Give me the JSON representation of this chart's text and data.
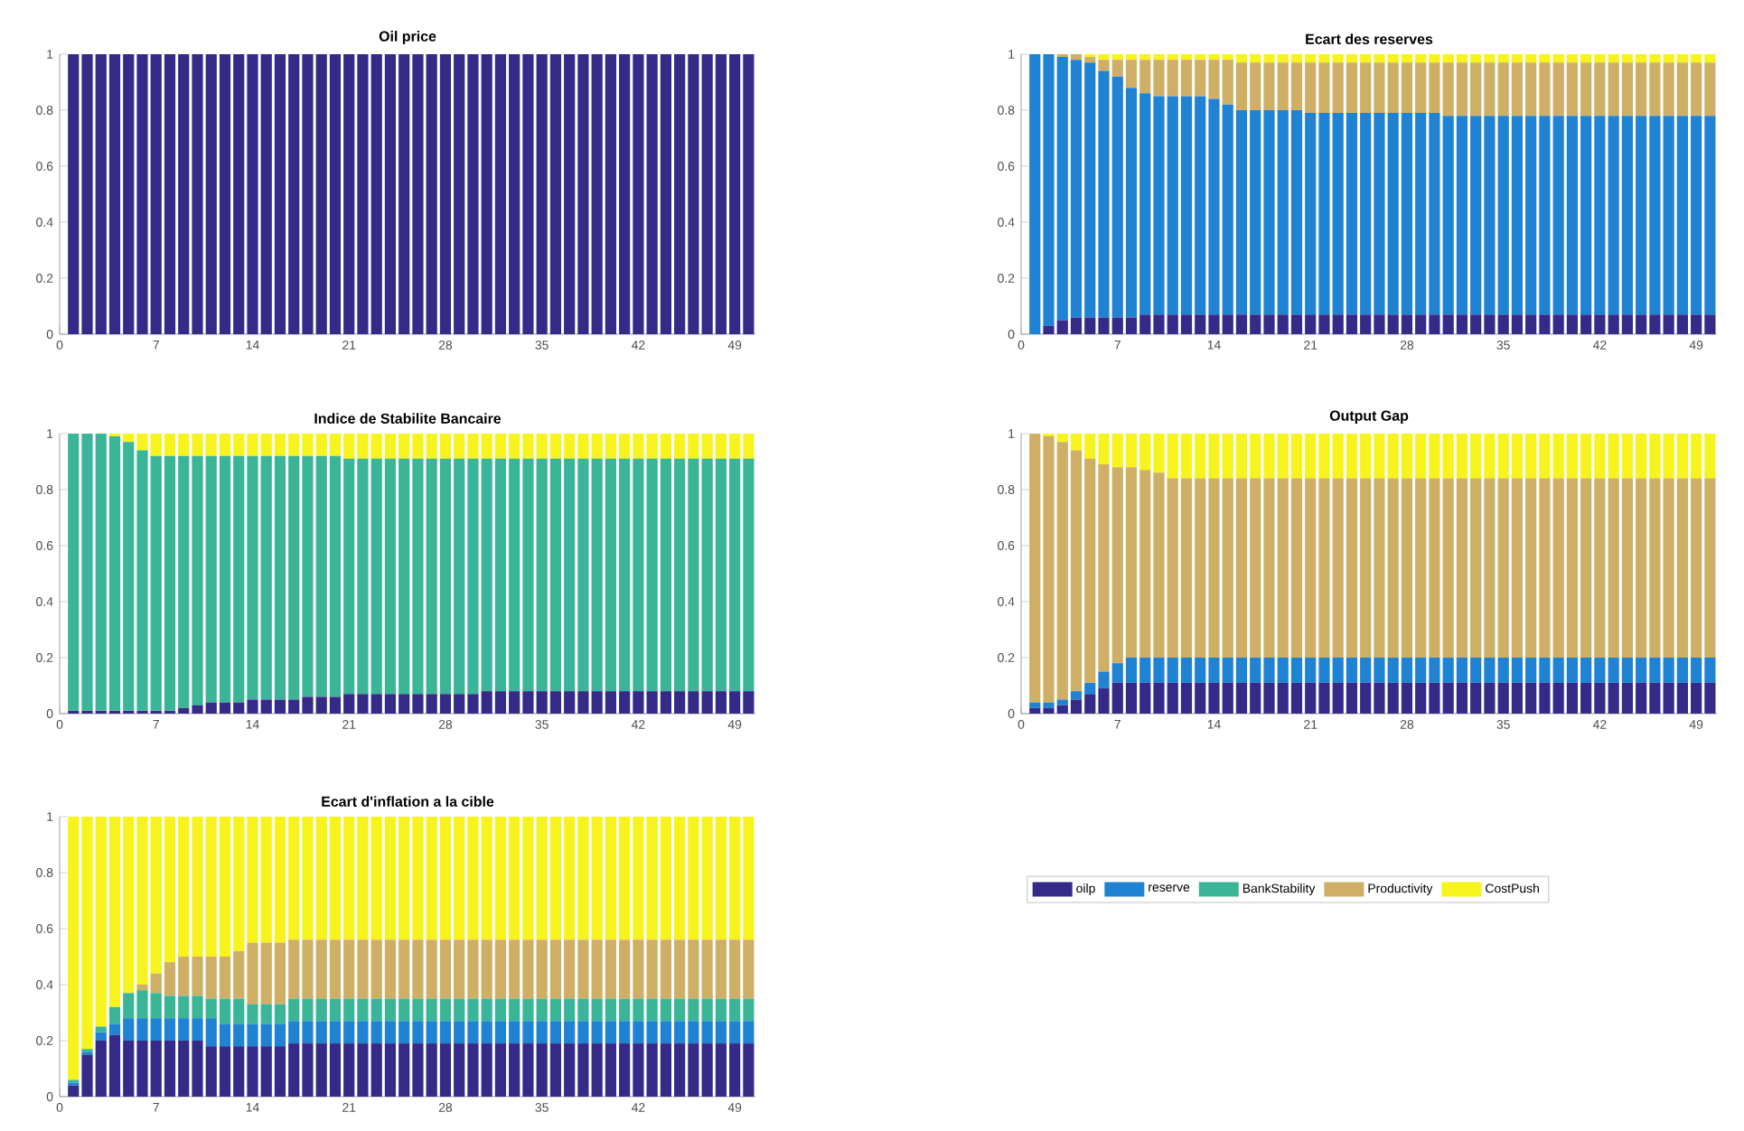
{
  "chart_data": [
    {
      "type": "bar",
      "stacked": true,
      "title": "Oil price",
      "x": [
        1,
        2,
        3,
        4,
        5,
        6,
        7,
        8,
        9,
        10,
        11,
        12,
        13,
        14,
        15,
        16,
        17,
        18,
        19,
        20,
        21,
        22,
        23,
        24,
        25,
        26,
        27,
        28,
        29,
        30,
        31,
        32,
        33,
        34,
        35,
        36,
        37,
        38,
        39,
        40,
        41,
        42,
        43,
        44,
        45,
        46,
        47,
        48,
        49,
        50
      ],
      "xlim": [
        0,
        50.5
      ],
      "xticks": [
        0,
        7,
        14,
        21,
        28,
        35,
        42,
        49
      ],
      "ylim": [
        0,
        1
      ],
      "yticks": [
        0,
        0.2,
        0.4,
        0.6,
        0.8,
        1
      ],
      "series": [
        {
          "color": "#352a87",
          "values": [
            1,
            1,
            1,
            1,
            1,
            1,
            1,
            1,
            1,
            1,
            1,
            1,
            1,
            1,
            1,
            1,
            1,
            1,
            1,
            1,
            1,
            1,
            1,
            1,
            1,
            1,
            1,
            1,
            1,
            1,
            1,
            1,
            1,
            1,
            1,
            1,
            1,
            1,
            1,
            1,
            1,
            1,
            1,
            1,
            1,
            1,
            1,
            1,
            1,
            1
          ]
        }
      ]
    },
    {
      "type": "bar",
      "stacked": true,
      "title": "Ecart des reserves",
      "x": [
        1,
        2,
        3,
        4,
        5,
        6,
        7,
        8,
        9,
        10,
        11,
        12,
        13,
        14,
        15,
        16,
        17,
        18,
        19,
        20,
        21,
        22,
        23,
        24,
        25,
        26,
        27,
        28,
        29,
        30,
        31,
        32,
        33,
        34,
        35,
        36,
        37,
        38,
        39,
        40,
        41,
        42,
        43,
        44,
        45,
        46,
        47,
        48,
        49,
        50
      ],
      "xlim": [
        0,
        50.5
      ],
      "xticks": [
        0,
        7,
        14,
        21,
        28,
        35,
        42,
        49
      ],
      "ylim": [
        0,
        1
      ],
      "yticks": [
        0,
        0.2,
        0.4,
        0.6,
        0.8,
        1
      ],
      "series": [
        {
          "color": "#352a87",
          "values": [
            0,
            0.03,
            0.05,
            0.06,
            0.06,
            0.06,
            0.06,
            0.06,
            0.07,
            0.07,
            0.07,
            0.07,
            0.07,
            0.07,
            0.07,
            0.07,
            0.07,
            0.07,
            0.07,
            0.07,
            0.07,
            0.07,
            0.07,
            0.07,
            0.07,
            0.07,
            0.07,
            0.07,
            0.07,
            0.07,
            0.07,
            0.07,
            0.07,
            0.07,
            0.07,
            0.07,
            0.07,
            0.07,
            0.07,
            0.07,
            0.07,
            0.07,
            0.07,
            0.07,
            0.07,
            0.07,
            0.07,
            0.07,
            0.07,
            0.07
          ]
        },
        {
          "color": "#1f82d2",
          "values": [
            1,
            0.97,
            0.94,
            0.92,
            0.91,
            0.88,
            0.86,
            0.82,
            0.79,
            0.78,
            0.78,
            0.78,
            0.78,
            0.77,
            0.75,
            0.73,
            0.73,
            0.73,
            0.73,
            0.73,
            0.72,
            0.72,
            0.72,
            0.72,
            0.72,
            0.72,
            0.72,
            0.72,
            0.72,
            0.72,
            0.71,
            0.71,
            0.71,
            0.71,
            0.71,
            0.71,
            0.71,
            0.71,
            0.71,
            0.71,
            0.71,
            0.71,
            0.71,
            0.71,
            0.71,
            0.71,
            0.71,
            0.71,
            0.71,
            0.71
          ]
        },
        {
          "color": "#cfaf66",
          "values": [
            0,
            0,
            0.01,
            0.02,
            0.02,
            0.04,
            0.06,
            0.1,
            0.12,
            0.13,
            0.13,
            0.13,
            0.13,
            0.14,
            0.16,
            0.17,
            0.17,
            0.17,
            0.17,
            0.17,
            0.18,
            0.18,
            0.18,
            0.18,
            0.18,
            0.18,
            0.18,
            0.18,
            0.18,
            0.18,
            0.19,
            0.19,
            0.19,
            0.19,
            0.19,
            0.19,
            0.19,
            0.19,
            0.19,
            0.19,
            0.19,
            0.19,
            0.19,
            0.19,
            0.19,
            0.19,
            0.19,
            0.19,
            0.19,
            0.19
          ]
        },
        {
          "color": "#f7f31c",
          "values": [
            0,
            0,
            0,
            0,
            0.01,
            0.02,
            0.02,
            0.02,
            0.02,
            0.02,
            0.02,
            0.02,
            0.02,
            0.02,
            0.02,
            0.03,
            0.03,
            0.03,
            0.03,
            0.03,
            0.03,
            0.03,
            0.03,
            0.03,
            0.03,
            0.03,
            0.03,
            0.03,
            0.03,
            0.03,
            0.03,
            0.03,
            0.03,
            0.03,
            0.03,
            0.03,
            0.03,
            0.03,
            0.03,
            0.03,
            0.03,
            0.03,
            0.03,
            0.03,
            0.03,
            0.03,
            0.03,
            0.03,
            0.03,
            0.03
          ]
        }
      ]
    },
    {
      "type": "bar",
      "stacked": true,
      "title": "Indice de Stabilite Bancaire",
      "x": [
        1,
        2,
        3,
        4,
        5,
        6,
        7,
        8,
        9,
        10,
        11,
        12,
        13,
        14,
        15,
        16,
        17,
        18,
        19,
        20,
        21,
        22,
        23,
        24,
        25,
        26,
        27,
        28,
        29,
        30,
        31,
        32,
        33,
        34,
        35,
        36,
        37,
        38,
        39,
        40,
        41,
        42,
        43,
        44,
        45,
        46,
        47,
        48,
        49,
        50
      ],
      "xlim": [
        0,
        50.5
      ],
      "xticks": [
        0,
        7,
        14,
        21,
        28,
        35,
        42,
        49
      ],
      "ylim": [
        0,
        1
      ],
      "yticks": [
        0,
        0.2,
        0.4,
        0.6,
        0.8,
        1
      ],
      "series": [
        {
          "color": "#352a87",
          "values": [
            0.01,
            0.01,
            0.01,
            0.01,
            0.01,
            0.01,
            0.01,
            0.01,
            0.02,
            0.03,
            0.04,
            0.04,
            0.04,
            0.05,
            0.05,
            0.05,
            0.05,
            0.06,
            0.06,
            0.06,
            0.07,
            0.07,
            0.07,
            0.07,
            0.07,
            0.07,
            0.07,
            0.07,
            0.07,
            0.07,
            0.08,
            0.08,
            0.08,
            0.08,
            0.08,
            0.08,
            0.08,
            0.08,
            0.08,
            0.08,
            0.08,
            0.08,
            0.08,
            0.08,
            0.08,
            0.08,
            0.08,
            0.08,
            0.08,
            0.08
          ]
        },
        {
          "color": "#3bb598",
          "values": [
            0.99,
            0.99,
            0.99,
            0.98,
            0.96,
            0.93,
            0.91,
            0.91,
            0.9,
            0.89,
            0.88,
            0.88,
            0.88,
            0.87,
            0.87,
            0.87,
            0.87,
            0.86,
            0.86,
            0.86,
            0.84,
            0.84,
            0.84,
            0.84,
            0.84,
            0.84,
            0.84,
            0.84,
            0.84,
            0.84,
            0.83,
            0.83,
            0.83,
            0.83,
            0.83,
            0.83,
            0.83,
            0.83,
            0.83,
            0.83,
            0.83,
            0.83,
            0.83,
            0.83,
            0.83,
            0.83,
            0.83,
            0.83,
            0.83,
            0.83
          ]
        },
        {
          "color": "#f7f31c",
          "values": [
            0,
            0,
            0,
            0.01,
            0.03,
            0.06,
            0.08,
            0.08,
            0.08,
            0.08,
            0.08,
            0.08,
            0.08,
            0.08,
            0.08,
            0.08,
            0.08,
            0.08,
            0.08,
            0.08,
            0.09,
            0.09,
            0.09,
            0.09,
            0.09,
            0.09,
            0.09,
            0.09,
            0.09,
            0.09,
            0.09,
            0.09,
            0.09,
            0.09,
            0.09,
            0.09,
            0.09,
            0.09,
            0.09,
            0.09,
            0.09,
            0.09,
            0.09,
            0.09,
            0.09,
            0.09,
            0.09,
            0.09,
            0.09,
            0.09
          ]
        }
      ]
    },
    {
      "type": "bar",
      "stacked": true,
      "title": "Output Gap",
      "x": [
        1,
        2,
        3,
        4,
        5,
        6,
        7,
        8,
        9,
        10,
        11,
        12,
        13,
        14,
        15,
        16,
        17,
        18,
        19,
        20,
        21,
        22,
        23,
        24,
        25,
        26,
        27,
        28,
        29,
        30,
        31,
        32,
        33,
        34,
        35,
        36,
        37,
        38,
        39,
        40,
        41,
        42,
        43,
        44,
        45,
        46,
        47,
        48,
        49,
        50
      ],
      "xlim": [
        0,
        50.5
      ],
      "xticks": [
        0,
        7,
        14,
        21,
        28,
        35,
        42,
        49
      ],
      "ylim": [
        0,
        1
      ],
      "yticks": [
        0,
        0.2,
        0.4,
        0.6,
        0.8,
        1
      ],
      "series": [
        {
          "color": "#352a87",
          "values": [
            0.02,
            0.02,
            0.03,
            0.05,
            0.07,
            0.09,
            0.11,
            0.11,
            0.11,
            0.11,
            0.11,
            0.11,
            0.11,
            0.11,
            0.11,
            0.11,
            0.11,
            0.11,
            0.11,
            0.11,
            0.11,
            0.11,
            0.11,
            0.11,
            0.11,
            0.11,
            0.11,
            0.11,
            0.11,
            0.11,
            0.11,
            0.11,
            0.11,
            0.11,
            0.11,
            0.11,
            0.11,
            0.11,
            0.11,
            0.11,
            0.11,
            0.11,
            0.11,
            0.11,
            0.11,
            0.11,
            0.11,
            0.11,
            0.11,
            0.11
          ]
        },
        {
          "color": "#1f82d2",
          "values": [
            0.02,
            0.02,
            0.02,
            0.03,
            0.04,
            0.06,
            0.07,
            0.09,
            0.09,
            0.09,
            0.09,
            0.09,
            0.09,
            0.09,
            0.09,
            0.09,
            0.09,
            0.09,
            0.09,
            0.09,
            0.09,
            0.09,
            0.09,
            0.09,
            0.09,
            0.09,
            0.09,
            0.09,
            0.09,
            0.09,
            0.09,
            0.09,
            0.09,
            0.09,
            0.09,
            0.09,
            0.09,
            0.09,
            0.09,
            0.09,
            0.09,
            0.09,
            0.09,
            0.09,
            0.09,
            0.09,
            0.09,
            0.09,
            0.09,
            0.09
          ]
        },
        {
          "color": "#cfaf66",
          "values": [
            0.96,
            0.95,
            0.92,
            0.86,
            0.8,
            0.74,
            0.7,
            0.68,
            0.67,
            0.66,
            0.64,
            0.64,
            0.64,
            0.64,
            0.64,
            0.64,
            0.64,
            0.64,
            0.64,
            0.64,
            0.64,
            0.64,
            0.64,
            0.64,
            0.64,
            0.64,
            0.64,
            0.64,
            0.64,
            0.64,
            0.64,
            0.64,
            0.64,
            0.64,
            0.64,
            0.64,
            0.64,
            0.64,
            0.64,
            0.64,
            0.64,
            0.64,
            0.64,
            0.64,
            0.64,
            0.64,
            0.64,
            0.64,
            0.64,
            0.64
          ]
        },
        {
          "color": "#f7f31c",
          "values": [
            0,
            0.01,
            0.03,
            0.06,
            0.09,
            0.11,
            0.12,
            0.12,
            0.13,
            0.14,
            0.16,
            0.16,
            0.16,
            0.16,
            0.16,
            0.16,
            0.16,
            0.16,
            0.16,
            0.16,
            0.16,
            0.16,
            0.16,
            0.16,
            0.16,
            0.16,
            0.16,
            0.16,
            0.16,
            0.16,
            0.16,
            0.16,
            0.16,
            0.16,
            0.16,
            0.16,
            0.16,
            0.16,
            0.16,
            0.16,
            0.16,
            0.16,
            0.16,
            0.16,
            0.16,
            0.16,
            0.16,
            0.16,
            0.16,
            0.16
          ]
        }
      ]
    },
    {
      "type": "bar",
      "stacked": true,
      "title": "Ecart d'inflation a la cible",
      "legend": "right",
      "x": [
        1,
        2,
        3,
        4,
        5,
        6,
        7,
        8,
        9,
        10,
        11,
        12,
        13,
        14,
        15,
        16,
        17,
        18,
        19,
        20,
        21,
        22,
        23,
        24,
        25,
        26,
        27,
        28,
        29,
        30,
        31,
        32,
        33,
        34,
        35,
        36,
        37,
        38,
        39,
        40,
        41,
        42,
        43,
        44,
        45,
        46,
        47,
        48,
        49,
        50
      ],
      "xlim": [
        0,
        50.5
      ],
      "xticks": [
        0,
        7,
        14,
        21,
        28,
        35,
        42,
        49
      ],
      "ylim": [
        0,
        1
      ],
      "yticks": [
        0,
        0.2,
        0.4,
        0.6,
        0.8,
        1
      ],
      "series": [
        {
          "name": "oilp",
          "color": "#352a87",
          "values": [
            0.04,
            0.15,
            0.2,
            0.22,
            0.2,
            0.2,
            0.2,
            0.2,
            0.2,
            0.2,
            0.18,
            0.18,
            0.18,
            0.18,
            0.18,
            0.18,
            0.19,
            0.19,
            0.19,
            0.19,
            0.19,
            0.19,
            0.19,
            0.19,
            0.19,
            0.19,
            0.19,
            0.19,
            0.19,
            0.19,
            0.19,
            0.19,
            0.19,
            0.19,
            0.19,
            0.19,
            0.19,
            0.19,
            0.19,
            0.19,
            0.19,
            0.19,
            0.19,
            0.19,
            0.19,
            0.19,
            0.19,
            0.19,
            0.19,
            0.19
          ]
        },
        {
          "name": "reserve",
          "color": "#1f82d2",
          "values": [
            0.01,
            0.01,
            0.03,
            0.04,
            0.08,
            0.08,
            0.08,
            0.08,
            0.08,
            0.08,
            0.1,
            0.08,
            0.08,
            0.08,
            0.08,
            0.08,
            0.08,
            0.08,
            0.08,
            0.08,
            0.08,
            0.08,
            0.08,
            0.08,
            0.08,
            0.08,
            0.08,
            0.08,
            0.08,
            0.08,
            0.08,
            0.08,
            0.08,
            0.08,
            0.08,
            0.08,
            0.08,
            0.08,
            0.08,
            0.08,
            0.08,
            0.08,
            0.08,
            0.08,
            0.08,
            0.08,
            0.08,
            0.08,
            0.08,
            0.08
          ]
        },
        {
          "name": "BankStability",
          "color": "#3bb598",
          "values": [
            0.01,
            0.01,
            0.02,
            0.06,
            0.09,
            0.1,
            0.09,
            0.08,
            0.08,
            0.08,
            0.07,
            0.09,
            0.09,
            0.07,
            0.07,
            0.07,
            0.08,
            0.08,
            0.08,
            0.08,
            0.08,
            0.08,
            0.08,
            0.08,
            0.08,
            0.08,
            0.08,
            0.08,
            0.08,
            0.08,
            0.08,
            0.08,
            0.08,
            0.08,
            0.08,
            0.08,
            0.08,
            0.08,
            0.08,
            0.08,
            0.08,
            0.08,
            0.08,
            0.08,
            0.08,
            0.08,
            0.08,
            0.08,
            0.08,
            0.08
          ]
        },
        {
          "name": "Productivity",
          "color": "#cfaf66",
          "values": [
            0,
            0,
            0,
            0,
            0,
            0.02,
            0.07,
            0.12,
            0.14,
            0.14,
            0.15,
            0.15,
            0.17,
            0.22,
            0.22,
            0.22,
            0.21,
            0.21,
            0.21,
            0.21,
            0.21,
            0.21,
            0.21,
            0.21,
            0.21,
            0.21,
            0.21,
            0.21,
            0.21,
            0.21,
            0.21,
            0.21,
            0.21,
            0.21,
            0.21,
            0.21,
            0.21,
            0.21,
            0.21,
            0.21,
            0.21,
            0.21,
            0.21,
            0.21,
            0.21,
            0.21,
            0.21,
            0.21,
            0.21,
            0.21
          ]
        },
        {
          "name": "CostPush",
          "color": "#f7f31c",
          "values": [
            0.94,
            0.83,
            0.75,
            0.68,
            0.63,
            0.6,
            0.56,
            0.52,
            0.5,
            0.5,
            0.5,
            0.5,
            0.48,
            0.45,
            0.45,
            0.45,
            0.44,
            0.44,
            0.44,
            0.44,
            0.44,
            0.44,
            0.44,
            0.44,
            0.44,
            0.44,
            0.44,
            0.44,
            0.44,
            0.44,
            0.44,
            0.44,
            0.44,
            0.44,
            0.44,
            0.44,
            0.44,
            0.44,
            0.44,
            0.44,
            0.44,
            0.44,
            0.44,
            0.44,
            0.44,
            0.44,
            0.44,
            0.44,
            0.44,
            0.44
          ]
        }
      ]
    }
  ]
}
